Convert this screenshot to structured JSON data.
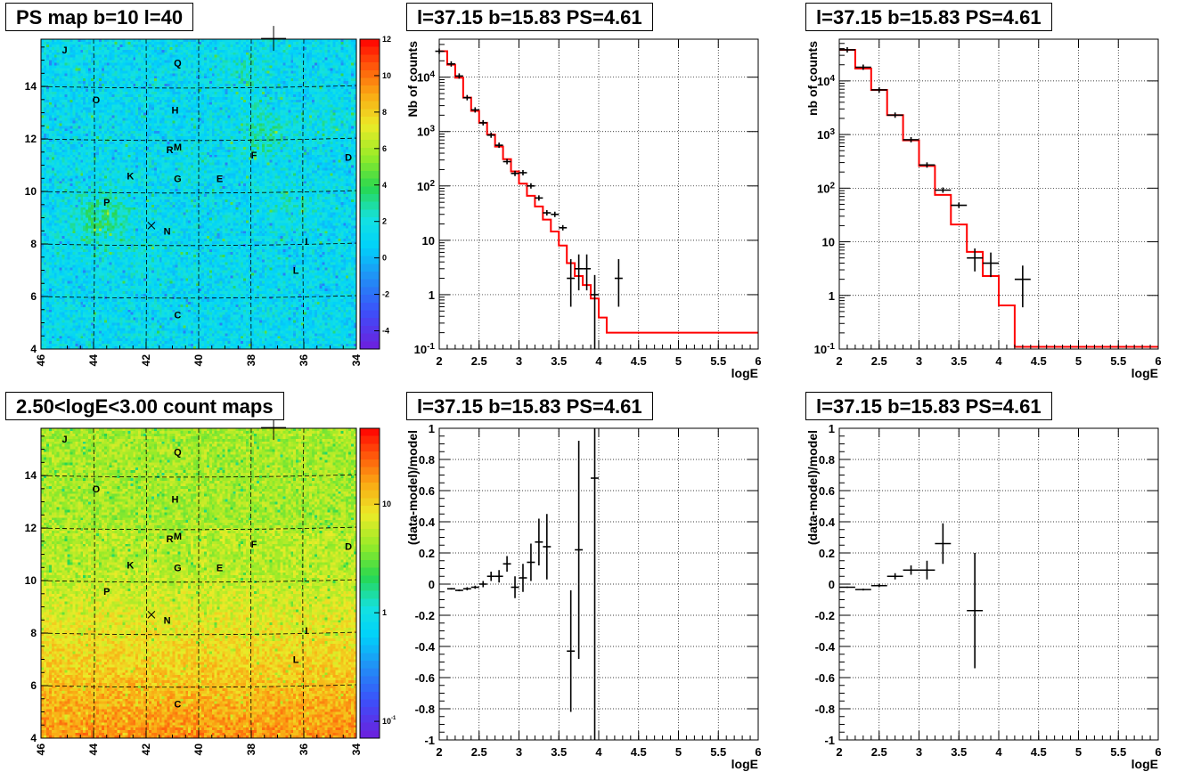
{
  "chart_data": [
    {
      "type": "heatmap",
      "title": "PS map b=10 l=40",
      "x_range": [
        46,
        34
      ],
      "y_range": [
        4,
        15.8
      ],
      "x_ticks": [
        "46",
        "44",
        "42",
        "40",
        "38",
        "36",
        "34"
      ],
      "y_ticks": [
        "4",
        "6",
        "8",
        "10",
        "12",
        "14"
      ],
      "colorbar": {
        "scale": "linear",
        "min": -5,
        "max": 12,
        "ticks": [
          "12",
          "10",
          "8",
          "6",
          "4",
          "2",
          "0",
          "-2",
          "-4"
        ]
      },
      "grid": true,
      "labels": [
        {
          "text": "J",
          "l": 45.1,
          "b": 15.4
        },
        {
          "text": "Q",
          "l": 40.8,
          "b": 14.9
        },
        {
          "text": "O",
          "l": 43.9,
          "b": 13.5
        },
        {
          "text": "H",
          "l": 40.9,
          "b": 13.1
        },
        {
          "text": "R",
          "l": 41.1,
          "b": 11.6
        },
        {
          "text": "M",
          "l": 40.8,
          "b": 11.7
        },
        {
          "text": "F",
          "l": 37.9,
          "b": 11.4
        },
        {
          "text": "D",
          "l": 34.3,
          "b": 11.3
        },
        {
          "text": "K",
          "l": 42.6,
          "b": 10.6
        },
        {
          "text": "G",
          "l": 40.8,
          "b": 10.5
        },
        {
          "text": "E",
          "l": 39.2,
          "b": 10.5
        },
        {
          "text": "P",
          "l": 43.5,
          "b": 9.6
        },
        {
          "text": "N",
          "l": 41.2,
          "b": 8.5
        },
        {
          "text": "I",
          "l": 35.9,
          "b": 8.1
        },
        {
          "text": "L",
          "l": 36.3,
          "b": 7.0
        },
        {
          "text": "C",
          "l": 40.8,
          "b": 5.3
        }
      ],
      "cross_marker": {
        "l": 37.15,
        "b": 15.83
      },
      "x_marker": {
        "l": 41.8,
        "b": 8.7
      }
    },
    {
      "type": "line",
      "title": "l=37.15 b=15.83 PS=4.61",
      "ylabel": "Nb of counts",
      "xlabel": "logE",
      "xlim": [
        2,
        6
      ],
      "ylim": [
        0.1,
        50000
      ],
      "yscale": "log",
      "grid": true,
      "x_ticks": [
        "2",
        "2.5",
        "3",
        "3.5",
        "4",
        "4.5",
        "5",
        "5.5",
        "6"
      ],
      "y_ticks": [
        "10^-1",
        "1",
        "10",
        "10^2",
        "10^3",
        "10^4"
      ],
      "model": {
        "edges": [
          2,
          2.1,
          2.2,
          2.3,
          2.4,
          2.5,
          2.6,
          2.7,
          2.8,
          2.9,
          3.0,
          3.1,
          3.2,
          3.3,
          3.4,
          3.5,
          3.6,
          3.7,
          3.8,
          3.9,
          4.0,
          4.1,
          6.0
        ],
        "values": [
          30000,
          17000,
          9800,
          4200,
          2400,
          1450,
          880,
          530,
          310,
          185,
          110,
          66,
          42,
          24,
          14.5,
          8,
          3.8,
          2.2,
          1.5,
          0.85,
          0.38,
          0.2
        ]
      },
      "data": [
        {
          "x": 2.0,
          "y": 30000,
          "xerr": 0.05
        },
        {
          "x": 2.15,
          "y": 17500,
          "xerr": 0.05
        },
        {
          "x": 2.25,
          "y": 10500,
          "xerr": 0.05
        },
        {
          "x": 2.35,
          "y": 4200,
          "xerr": 0.05
        },
        {
          "x": 2.45,
          "y": 2500,
          "xerr": 0.05
        },
        {
          "x": 2.55,
          "y": 1450,
          "xerr": 0.05
        },
        {
          "x": 2.65,
          "y": 860,
          "xerr": 0.05
        },
        {
          "x": 2.75,
          "y": 560,
          "xerr": 0.05
        },
        {
          "x": 2.85,
          "y": 280,
          "xerr": 0.05
        },
        {
          "x": 2.95,
          "y": 170,
          "xerr": 0.05
        },
        {
          "x": 3.05,
          "y": 175,
          "xerr": 0.05
        },
        {
          "x": 3.15,
          "y": 100,
          "xerr": 0.05
        },
        {
          "x": 3.25,
          "y": 60,
          "xerr": 0.05
        },
        {
          "x": 3.35,
          "y": 32,
          "xerr": 0.05
        },
        {
          "x": 3.45,
          "y": 30,
          "xerr": 0.05
        },
        {
          "x": 3.55,
          "y": 17,
          "xerr": 0.05
        },
        {
          "x": 3.65,
          "y": 2,
          "xerr": 0.05,
          "lo": 0.6,
          "hi": 4.5
        },
        {
          "x": 3.75,
          "y": 3,
          "xerr": 0.05,
          "lo": 1.2,
          "hi": 5.5
        },
        {
          "x": 3.85,
          "y": 3,
          "xerr": 0.05,
          "lo": 1.2,
          "hi": 5.5
        },
        {
          "x": 3.95,
          "y": 1,
          "xerr": 0.05,
          "lo": 0.1,
          "hi": 2.3
        },
        {
          "x": 4.25,
          "y": 2,
          "xerr": 0.05,
          "lo": 0.6,
          "hi": 4.5
        }
      ]
    },
    {
      "type": "line",
      "title": "l=37.15 b=15.83 PS=4.61",
      "ylabel": "nb of counts",
      "xlabel": "logE",
      "xlim": [
        2,
        6
      ],
      "ylim": [
        0.1,
        60000
      ],
      "yscale": "log",
      "grid": true,
      "x_ticks": [
        "2",
        "2.5",
        "3",
        "3.5",
        "4",
        "4.5",
        "5",
        "5.5",
        "6"
      ],
      "y_ticks": [
        "10^-1",
        "1",
        "10",
        "10^2",
        "10^3",
        "10^4"
      ],
      "model": {
        "edges": [
          2,
          2.2,
          2.4,
          2.6,
          2.8,
          3.0,
          3.2,
          3.4,
          3.6,
          3.8,
          4.0,
          4.2,
          6.0
        ],
        "values": [
          38000,
          17000,
          6800,
          2300,
          780,
          260,
          75,
          21,
          6.5,
          2.3,
          0.65,
          0.11
        ]
      },
      "data": [
        {
          "x": 2.1,
          "y": 38000,
          "xerr": 0.1
        },
        {
          "x": 2.3,
          "y": 18000,
          "xerr": 0.1
        },
        {
          "x": 2.5,
          "y": 6800,
          "xerr": 0.1
        },
        {
          "x": 2.7,
          "y": 2300,
          "xerr": 0.1
        },
        {
          "x": 2.9,
          "y": 800,
          "xerr": 0.1
        },
        {
          "x": 3.1,
          "y": 270,
          "xerr": 0.1
        },
        {
          "x": 3.3,
          "y": 92,
          "xerr": 0.1
        },
        {
          "x": 3.5,
          "y": 48,
          "xerr": 0.1
        },
        {
          "x": 3.7,
          "y": 5,
          "xerr": 0.1,
          "lo": 2.8,
          "hi": 7.5
        },
        {
          "x": 3.9,
          "y": 4,
          "xerr": 0.1,
          "lo": 2.2,
          "hi": 6.3
        },
        {
          "x": 4.3,
          "y": 2,
          "xerr": 0.1,
          "lo": 0.6,
          "hi": 3.6
        }
      ]
    },
    {
      "type": "heatmap",
      "title": "2.50<logE<3.00 count maps",
      "x_range": [
        46,
        34
      ],
      "y_range": [
        4,
        15.8
      ],
      "x_ticks": [
        "46",
        "44",
        "42",
        "40",
        "38",
        "36",
        "34"
      ],
      "y_ticks": [
        "4",
        "6",
        "8",
        "10",
        "12",
        "14"
      ],
      "colorbar": {
        "scale": "log",
        "min": 0.07,
        "max": 50,
        "ticks": [
          "10",
          "1",
          "10^-1"
        ]
      },
      "grid": true,
      "labels": [
        {
          "text": "J",
          "l": 45.1,
          "b": 15.4
        },
        {
          "text": "Q",
          "l": 40.8,
          "b": 14.9
        },
        {
          "text": "O",
          "l": 43.9,
          "b": 13.5
        },
        {
          "text": "H",
          "l": 40.9,
          "b": 13.1
        },
        {
          "text": "R",
          "l": 41.1,
          "b": 11.6
        },
        {
          "text": "M",
          "l": 40.8,
          "b": 11.7
        },
        {
          "text": "F",
          "l": 37.9,
          "b": 11.4
        },
        {
          "text": "D",
          "l": 34.3,
          "b": 11.3
        },
        {
          "text": "K",
          "l": 42.6,
          "b": 10.6
        },
        {
          "text": "G",
          "l": 40.8,
          "b": 10.5
        },
        {
          "text": "E",
          "l": 39.2,
          "b": 10.5
        },
        {
          "text": "P",
          "l": 43.5,
          "b": 9.6
        },
        {
          "text": "N",
          "l": 41.2,
          "b": 8.5
        },
        {
          "text": "I",
          "l": 35.9,
          "b": 8.1
        },
        {
          "text": "L",
          "l": 36.3,
          "b": 7.0
        },
        {
          "text": "C",
          "l": 40.8,
          "b": 5.3
        }
      ],
      "cross_marker": {
        "l": 37.15,
        "b": 15.83
      },
      "x_marker": {
        "l": 41.8,
        "b": 8.7
      }
    },
    {
      "type": "scatter",
      "title": "l=37.15 b=15.83 PS=4.61",
      "ylabel": "(data-model)/model",
      "xlabel": "logE",
      "xlim": [
        2,
        6
      ],
      "ylim": [
        -1,
        1
      ],
      "grid": true,
      "x_ticks": [
        "2",
        "2.5",
        "3",
        "3.5",
        "4",
        "4.5",
        "5",
        "5.5",
        "6"
      ],
      "y_ticks": [
        "1",
        "0.8",
        "0.6",
        "0.4",
        "0.2",
        "0",
        "-0.2",
        "-0.4",
        "-0.6",
        "-0.8",
        "-1"
      ],
      "data": [
        {
          "x": 2.15,
          "y": -0.03,
          "xerr": 0.05,
          "err": 0.005
        },
        {
          "x": 2.25,
          "y": -0.04,
          "xerr": 0.05,
          "err": 0.006
        },
        {
          "x": 2.35,
          "y": -0.03,
          "xerr": 0.05,
          "err": 0.01
        },
        {
          "x": 2.45,
          "y": -0.02,
          "xerr": 0.05,
          "err": 0.01
        },
        {
          "x": 2.55,
          "y": 0.0,
          "xerr": 0.05,
          "err": 0.02
        },
        {
          "x": 2.65,
          "y": 0.05,
          "xerr": 0.05,
          "err": 0.03
        },
        {
          "x": 2.75,
          "y": 0.05,
          "xerr": 0.05,
          "err": 0.04
        },
        {
          "x": 2.85,
          "y": 0.13,
          "xerr": 0.05,
          "err": 0.05
        },
        {
          "x": 2.95,
          "y": -0.02,
          "xerr": 0.05,
          "err": 0.07
        },
        {
          "x": 3.05,
          "y": 0.04,
          "xerr": 0.05,
          "err": 0.09
        },
        {
          "x": 3.15,
          "y": 0.14,
          "xerr": 0.05,
          "err": 0.12
        },
        {
          "x": 3.25,
          "y": 0.27,
          "xerr": 0.05,
          "err": 0.15
        },
        {
          "x": 3.35,
          "y": 0.24,
          "xerr": 0.05,
          "err": 0.21
        },
        {
          "x": 3.65,
          "y": -0.43,
          "xerr": 0.05,
          "err": 0.39
        },
        {
          "x": 3.75,
          "y": 0.22,
          "xerr": 0.05,
          "err": 0.7
        },
        {
          "x": 3.95,
          "y": 0.68,
          "xerr": 0.05,
          "err": 1.8
        }
      ]
    },
    {
      "type": "scatter",
      "title": "l=37.15 b=15.83 PS=4.61",
      "ylabel": "(data-model)/model",
      "xlabel": "logE",
      "xlim": [
        2,
        6
      ],
      "ylim": [
        -1,
        1
      ],
      "grid": true,
      "x_ticks": [
        "2",
        "2.5",
        "3",
        "3.5",
        "4",
        "4.5",
        "5",
        "5.5",
        "6"
      ],
      "y_ticks": [
        "1",
        "0.8",
        "0.6",
        "0.4",
        "0.2",
        "0",
        "-0.2",
        "-0.4",
        "-0.6",
        "-0.8",
        "-1"
      ],
      "data": [
        {
          "x": 2.1,
          "y": -0.02,
          "xerr": 0.1,
          "err": 0.004
        },
        {
          "x": 2.3,
          "y": -0.035,
          "xerr": 0.1,
          "err": 0.006
        },
        {
          "x": 2.5,
          "y": -0.01,
          "xerr": 0.1,
          "err": 0.01
        },
        {
          "x": 2.7,
          "y": 0.05,
          "xerr": 0.1,
          "err": 0.02
        },
        {
          "x": 2.9,
          "y": 0.09,
          "xerr": 0.1,
          "err": 0.03
        },
        {
          "x": 3.1,
          "y": 0.09,
          "xerr": 0.1,
          "err": 0.06
        },
        {
          "x": 3.3,
          "y": 0.26,
          "xerr": 0.1,
          "err": 0.13
        },
        {
          "x": 3.7,
          "y": -0.17,
          "xerr": 0.1,
          "err": 0.37
        }
      ]
    }
  ]
}
